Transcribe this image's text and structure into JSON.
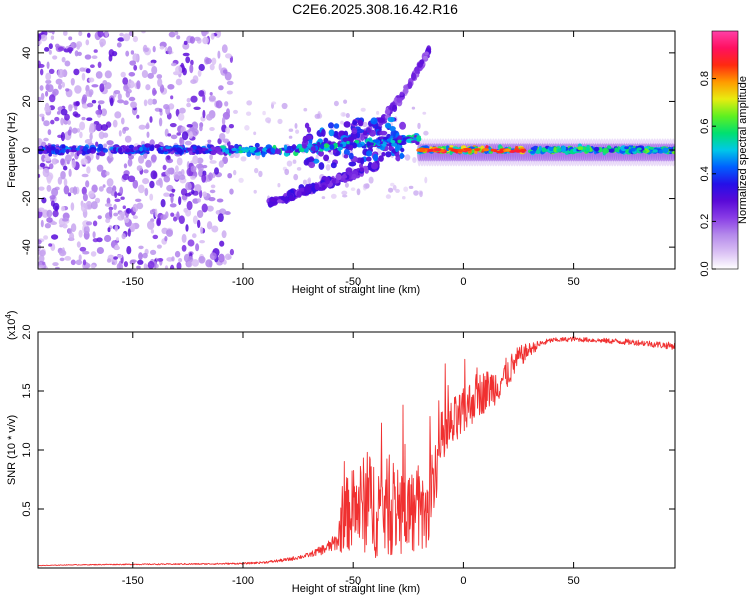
{
  "figure_title": "C2E6.2025.308.16.42.R16",
  "colors": {
    "snr_line": "#f03030",
    "axis": "#000000",
    "colormap": [
      "#ffffff",
      "#dac0f4",
      "#b58aeb",
      "#8a3ee6",
      "#5a0ad8",
      "#2510e8",
      "#0060ff",
      "#00c8e8",
      "#00e070",
      "#60f020",
      "#e8ec10",
      "#ff9a00",
      "#ff2a10",
      "#ff1060",
      "#ff40a8"
    ]
  },
  "chart_data": [
    {
      "type": "heatmap",
      "title": "",
      "xlabel": "Height of straight line (km)",
      "ylabel": "Frequency (Hz)",
      "xlim": [
        -193,
        96
      ],
      "ylim": [
        -49,
        49
      ],
      "xticks": [
        -150,
        -100,
        -50,
        0,
        50
      ],
      "xtick_labels": [
        "-150",
        "-100",
        "-50",
        "0",
        "50"
      ],
      "yticks": [
        -40,
        -20,
        0,
        20,
        40
      ],
      "ytick_labels": [
        "-40",
        "-20",
        "0",
        "20",
        "40"
      ],
      "colorbar": {
        "label": "Normalized spectral amplitude",
        "range": [
          0,
          1
        ],
        "ticks": [
          0.0,
          0.2,
          0.4,
          0.6,
          0.8
        ],
        "tick_labels": [
          "0.0",
          "0.2",
          "0.4",
          "0.6",
          "0.8"
        ]
      },
      "features": [
        {
          "name": "main-band",
          "x_range": [
            -193,
            96
          ],
          "freq_center_hz": 0,
          "description": "narrow band near 0 Hz, strongest from -20 km to +96 km"
        },
        {
          "name": "upper-branch",
          "x_range": [
            -50,
            -15
          ],
          "freq_start_hz": 5,
          "freq_end_hz": 42
        },
        {
          "name": "lower-branch",
          "x_range": [
            -88,
            -40
          ],
          "freq_start_hz": -22,
          "freq_end_hz": -6
        },
        {
          "name": "scatter-region",
          "x_range": [
            -193,
            -105
          ],
          "freq_range_hz": [
            -49,
            49
          ]
        }
      ]
    },
    {
      "type": "line",
      "title": "",
      "xlabel": "Height of straight line (km)",
      "ylabel": "SNR (10 * v/v)",
      "scale_label": "(x10",
      "scale_exponent": "4",
      "scale_suffix": ")",
      "xlim": [
        -193,
        96
      ],
      "ylim": [
        0,
        20000
      ],
      "xticks": [
        -150,
        -100,
        -50,
        0,
        50
      ],
      "xtick_labels": [
        "-150",
        "-100",
        "-50",
        "0",
        "50"
      ],
      "yticks": [
        5000,
        10000,
        15000,
        20000
      ],
      "ytick_labels": [
        "0.5",
        "1.0",
        "1.5",
        "2.0"
      ],
      "series": [
        {
          "name": "SNR",
          "x": [
            -193,
            -180,
            -160,
            -140,
            -120,
            -100,
            -90,
            -80,
            -70,
            -62,
            -57,
            -55,
            -50,
            -45,
            -40,
            -35,
            -30,
            -25,
            -20,
            -16,
            -15,
            -12,
            -10,
            -5,
            0,
            5,
            10,
            15,
            20,
            25,
            30,
            35,
            40,
            50,
            60,
            70,
            80,
            90,
            96
          ],
          "values": [
            200,
            260,
            300,
            320,
            340,
            380,
            480,
            700,
            1100,
            1700,
            2300,
            4200,
            5000,
            5400,
            5300,
            5100,
            5000,
            4900,
            4700,
            4300,
            7000,
            9000,
            10500,
            12000,
            13000,
            14500,
            15000,
            15500,
            16500,
            17800,
            18500,
            19000,
            19300,
            19400,
            19300,
            19200,
            19100,
            18900,
            18800
          ],
          "noise_amplitude": [
            20,
            30,
            40,
            50,
            60,
            70,
            90,
            150,
            200,
            500,
            800,
            3000,
            3500,
            4200,
            4500,
            4200,
            4000,
            3800,
            3600,
            3000,
            3000,
            3000,
            2800,
            2400,
            2200,
            2000,
            1800,
            1600,
            1400,
            1000,
            600,
            300,
            200,
            200,
            200,
            250,
            250,
            300,
            300
          ]
        }
      ]
    }
  ]
}
